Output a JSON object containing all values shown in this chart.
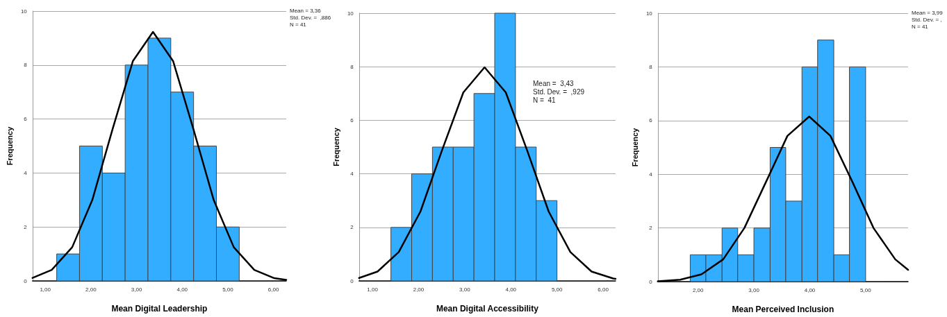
{
  "chart_data": [
    {
      "type": "histogram",
      "xlabel": "Mean Digital Leadership",
      "ylabel": "Frequency",
      "bins": [
        1.25,
        1.75,
        2.25,
        2.75,
        3.25,
        3.75,
        4.25,
        4.75,
        5.25
      ],
      "series": [
        {
          "color": "#33adff",
          "values": [
            1,
            5,
            4,
            8,
            9,
            7,
            5,
            2
          ]
        },
        {
          "type": "line",
          "color": "#000000",
          "x": [
            0.72,
            1.14,
            1.59,
            2.03,
            2.47,
            2.92,
            3.36,
            3.8,
            4.25,
            4.69,
            5.13,
            5.58,
            6.02,
            6.28
          ],
          "values": [
            0.11,
            0.41,
            1.25,
            3.0,
            5.6,
            8.15,
            9.23,
            8.15,
            5.6,
            3.0,
            1.25,
            0.41,
            0.1,
            0.04
          ]
        }
      ],
      "xlim": [
        0.72,
        6.28
      ],
      "xticks": [
        {
          "value": 1,
          "label": "1,00"
        },
        {
          "value": 2,
          "label": "2,00"
        },
        {
          "value": 3,
          "label": "3,00"
        },
        {
          "value": 4,
          "label": "4,00"
        },
        {
          "value": 5,
          "label": "5,00"
        },
        {
          "value": 6,
          "label": "6,00"
        }
      ],
      "ylim": [
        0,
        10
      ],
      "yticks": [
        0,
        2,
        4,
        6,
        8,
        10
      ],
      "grid": "y",
      "line_style": "solid",
      "marker": "none",
      "annotations": [
        "Mean = 3,36",
        "Std. Dev. =  ,886",
        "N = 41"
      ]
    },
    {
      "type": "histogram",
      "xlabel": "Mean Digital Accessibility",
      "ylabel": "Frequency",
      "bins": [
        1.4,
        1.85,
        2.3,
        2.75,
        3.2,
        3.65,
        4.1,
        4.55,
        5.0
      ],
      "series": [
        {
          "color": "#33adff",
          "values": [
            2,
            4,
            5,
            5,
            7,
            10,
            5,
            3
          ]
        },
        {
          "type": "line",
          "color": "#000000",
          "x": [
            0.71,
            1.11,
            1.57,
            2.04,
            2.5,
            2.97,
            3.43,
            3.89,
            4.36,
            4.82,
            5.29,
            5.75,
            6.22,
            6.27
          ],
          "values": [
            0.11,
            0.35,
            1.08,
            2.59,
            4.84,
            7.04,
            7.98,
            7.04,
            4.84,
            2.59,
            1.08,
            0.35,
            0.09,
            0.08
          ]
        }
      ],
      "xlim": [
        0.71,
        6.27
      ],
      "xticks": [
        {
          "value": 1,
          "label": "1,00"
        },
        {
          "value": 2,
          "label": "2,00"
        },
        {
          "value": 3,
          "label": "3,00"
        },
        {
          "value": 4,
          "label": "4,00"
        },
        {
          "value": 5,
          "label": "5,00"
        },
        {
          "value": 6,
          "label": "6,00"
        }
      ],
      "ylim": [
        0,
        10
      ],
      "yticks": [
        0,
        2,
        4,
        6,
        8,
        10
      ],
      "grid": "y",
      "line_style": "solid",
      "marker": "none",
      "annotations": [
        "Mean =  3,43",
        "Std. Dev. =  ,929",
        "N =  41"
      ]
    },
    {
      "type": "histogram",
      "xlabel": "Mean Perceived Inclusion",
      "ylabel": "Frequency",
      "bins": [
        1.86,
        2.14,
        2.43,
        2.71,
        3.0,
        3.29,
        3.57,
        3.86,
        4.14,
        4.43,
        4.71,
        5.0
      ],
      "series": [
        {
          "color": "#33adff",
          "values": [
            1,
            1,
            2,
            1,
            2,
            5,
            3,
            8,
            9,
            1,
            8
          ]
        },
        {
          "type": "line",
          "color": "#000000",
          "x": [
            1.28,
            1.68,
            2.06,
            2.45,
            2.83,
            3.22,
            3.6,
            3.99,
            4.37,
            4.76,
            5.14,
            5.53,
            5.76
          ],
          "values": [
            0.01,
            0.07,
            0.27,
            0.83,
            2.0,
            3.73,
            5.43,
            6.15,
            5.43,
            3.73,
            2.0,
            0.83,
            0.44
          ]
        }
      ],
      "xlim": [
        1.28,
        5.76
      ],
      "xticks": [
        {
          "value": 2,
          "label": "2,00"
        },
        {
          "value": 3,
          "label": "3,00"
        },
        {
          "value": 4,
          "label": "4,00"
        },
        {
          "value": 5,
          "label": "5,00"
        }
      ],
      "ylim": [
        0,
        10
      ],
      "yticks": [
        0,
        2,
        4,
        6,
        8,
        10
      ],
      "grid": "y",
      "line_style": "solid",
      "marker": "none",
      "annotations": [
        "Mean = 3,99",
        "Std. Dev. = ,",
        "N = 41"
      ]
    }
  ]
}
